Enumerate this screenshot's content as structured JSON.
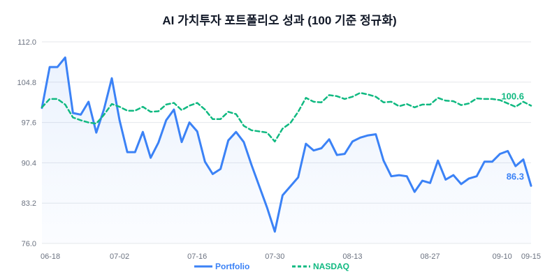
{
  "chart_data": {
    "type": "line",
    "title": "AI 가치투자 포트폴리오 성과 (100 기준 정규화)",
    "xlabel": "",
    "ylabel": "",
    "ylim": [
      76.0,
      112.0
    ],
    "yticks": [
      "112.0",
      "104.8",
      "97.6",
      "90.4",
      "83.2",
      "76.0"
    ],
    "ytick_values": [
      112.0,
      104.8,
      97.6,
      90.4,
      83.2,
      76.0
    ],
    "xtick_labels": [
      "06-18",
      "07-02",
      "07-16",
      "07-30",
      "08-13",
      "08-27",
      "09-10",
      "09-15"
    ],
    "xtick_indices": [
      0,
      10,
      20,
      30,
      40,
      50,
      60,
      64
    ],
    "series": [
      {
        "name": "Portfolio",
        "color": "#3b82f6",
        "end_label": "86.3",
        "values": [
          100.2,
          107.5,
          107.5,
          109.2,
          99.3,
          99.0,
          101.3,
          95.8,
          100.0,
          105.5,
          98.0,
          92.3,
          92.3,
          95.9,
          91.3,
          94.0,
          98.0,
          99.9,
          94.1,
          97.6,
          96.0,
          90.6,
          88.4,
          89.3,
          94.4,
          95.9,
          94.1,
          90.0,
          86.2,
          82.4,
          78.1,
          84.6,
          86.2,
          87.8,
          93.8,
          92.6,
          93.0,
          94.6,
          91.8,
          92.0,
          94.2,
          94.9,
          95.3,
          95.5,
          90.8,
          88.0,
          88.2,
          88.0,
          85.2,
          87.2,
          86.8,
          90.8,
          87.4,
          88.2,
          86.6,
          87.6,
          88.0,
          90.6,
          90.6,
          92.0,
          92.5,
          89.8,
          91.0,
          86.3
        ]
      },
      {
        "name": "NASDAQ",
        "color": "#10b981",
        "end_label": "100.6",
        "values": [
          100.3,
          101.8,
          101.8,
          100.8,
          98.5,
          98.0,
          97.6,
          97.4,
          99.0,
          100.9,
          100.4,
          99.7,
          99.7,
          100.4,
          99.5,
          99.6,
          100.8,
          101.1,
          99.8,
          100.6,
          101.1,
          99.9,
          98.2,
          98.2,
          99.5,
          99.1,
          97.0,
          96.2,
          96.0,
          95.8,
          94.2,
          96.5,
          97.5,
          99.5,
          102.0,
          101.3,
          101.2,
          102.5,
          102.3,
          101.8,
          102.2,
          102.9,
          102.6,
          102.2,
          101.2,
          101.3,
          100.5,
          100.9,
          100.3,
          100.8,
          100.8,
          102.0,
          101.5,
          101.4,
          100.7,
          101.0,
          101.9,
          101.8,
          101.8,
          101.6,
          101.0,
          100.4,
          101.3,
          100.6
        ]
      }
    ]
  }
}
